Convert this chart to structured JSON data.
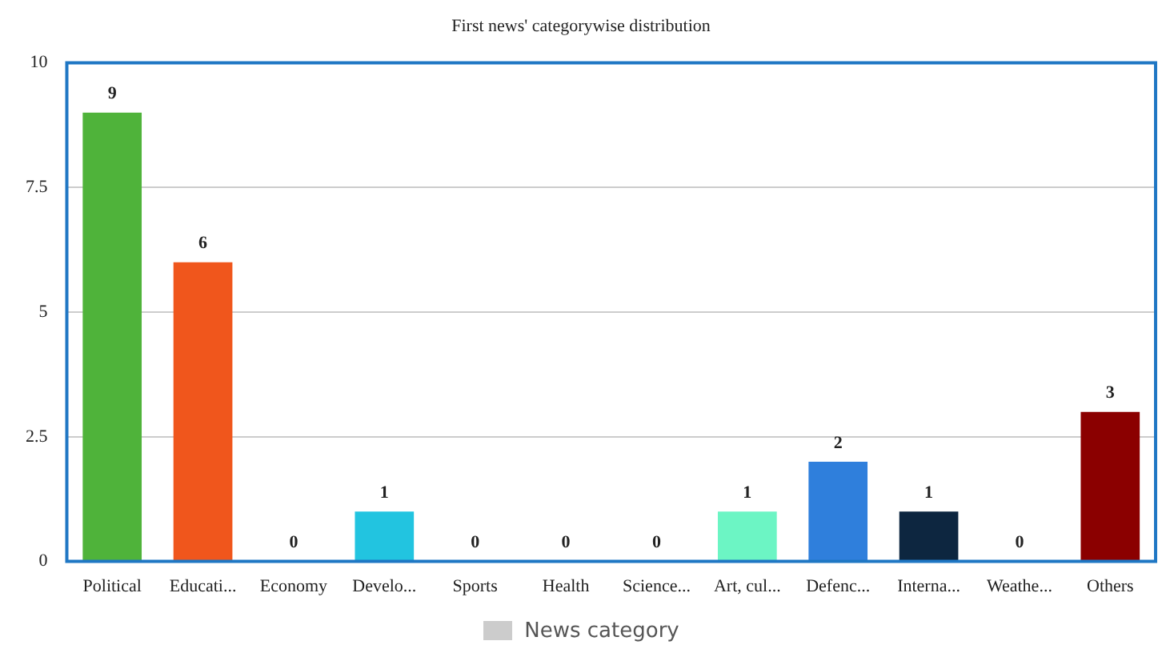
{
  "chart_data": {
    "type": "bar",
    "title": "First news' categorywise distribution",
    "categories": [
      "Political",
      "Educati...",
      "Economy",
      "Develo...",
      "Sports",
      "Health",
      "Science...",
      "Art, cul...",
      "Defenc...",
      "Interna...",
      "Weathe...",
      "Others"
    ],
    "series": [
      {
        "name": "News category",
        "color": "#cccccc",
        "values": [
          9,
          6,
          0,
          1,
          0,
          0,
          0,
          1,
          2,
          1,
          0,
          3
        ],
        "colors": [
          "#4fb33a",
          "#f0561c",
          "#e8c21c",
          "#22c4e0",
          "#9b59b6",
          "#e91e63",
          "#795548",
          "#6cf5c4",
          "#2f7fdc",
          "#0d2640",
          "#ff9800",
          "#8b0000"
        ]
      }
    ],
    "ylim": [
      0,
      10
    ],
    "yticks": [
      0,
      2.5,
      5,
      7.5,
      10
    ],
    "grid": "y",
    "legend": "bottom",
    "data_labels": true
  }
}
